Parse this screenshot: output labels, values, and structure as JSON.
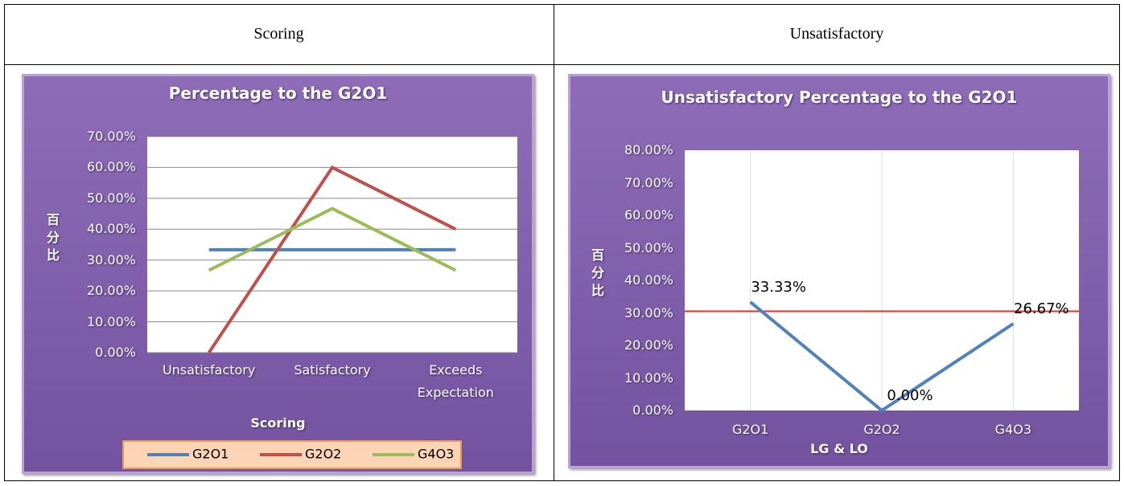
{
  "table": {
    "header": [
      "Scoring",
      "Unsatisfactory"
    ]
  },
  "chart_data": [
    {
      "type": "line",
      "title": "Percentage to the G2O1",
      "categories": [
        "Unsatisfactory",
        "Satisfactory",
        "Exceeds Expectation"
      ],
      "series": [
        {
          "name": "G2O1",
          "color": "#4f81bd",
          "values": [
            33.33,
            33.33,
            33.33
          ]
        },
        {
          "name": "G2O2",
          "color": "#c0504d",
          "values": [
            0,
            60,
            40
          ]
        },
        {
          "name": "G4O3",
          "color": "#9bbb59",
          "values": [
            26.67,
            46.67,
            26.67
          ]
        }
      ],
      "ylim": [
        0,
        70
      ],
      "yticks": [
        {
          "value": 0,
          "label": "0.00%"
        },
        {
          "value": 10,
          "label": "10.00%"
        },
        {
          "value": 20,
          "label": "20.00%"
        },
        {
          "value": 30,
          "label": "30.00%"
        },
        {
          "value": 40,
          "label": "40.00%"
        },
        {
          "value": 50,
          "label": "50.00%"
        },
        {
          "value": 60,
          "label": "60.00%"
        },
        {
          "value": 70,
          "label": "70.00%"
        }
      ],
      "xlabel": "Scoring",
      "ylabel": "百分比",
      "grid": "horizontal",
      "legend": "bottom"
    },
    {
      "type": "line",
      "title": "Unsatisfactory Percentage to the G2O1",
      "categories": [
        "G2O1",
        "G2O2",
        "G4O3"
      ],
      "series": [
        {
          "color": "#4f81bd",
          "values": [
            33.33,
            0,
            26.67
          ],
          "value_labels": [
            "33.33%",
            "0.00%",
            "26.67%"
          ]
        }
      ],
      "ylim": [
        0,
        80
      ],
      "yticks": [
        {
          "value": 0,
          "label": "0.00%"
        },
        {
          "value": 10,
          "label": "10.00%"
        },
        {
          "value": 20,
          "label": "20.00%"
        },
        {
          "value": 30,
          "label": "30.00%"
        },
        {
          "value": 40,
          "label": "40.00%"
        },
        {
          "value": 50,
          "label": "50.00%"
        },
        {
          "value": 60,
          "label": "60.00%"
        },
        {
          "value": 70,
          "label": "70.00%"
        },
        {
          "value": 80,
          "label": "80.00%"
        }
      ],
      "xlabel": "LG & LO",
      "ylabel": "百分比",
      "grid": "vertical",
      "reference_line": {
        "value": 30.5,
        "color": "#e03030"
      }
    }
  ]
}
